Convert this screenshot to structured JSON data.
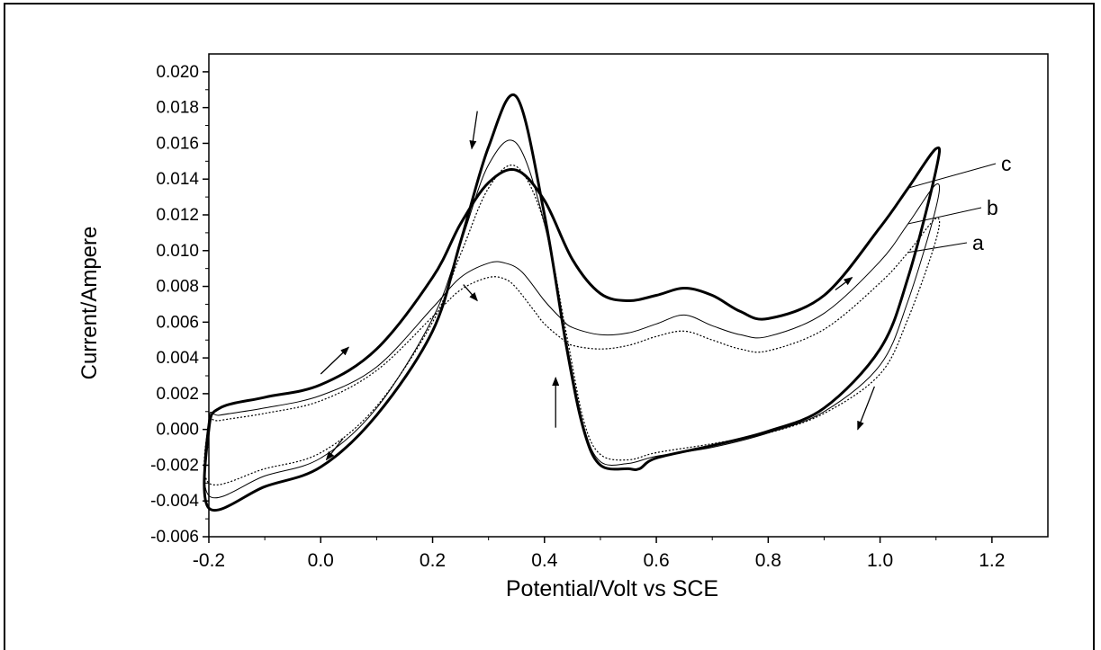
{
  "chart_data": {
    "type": "line",
    "title": "",
    "xlabel": "Potential/Volt vs SCE",
    "ylabel": "Current/Ampere",
    "xlim": [
      -0.2,
      1.3
    ],
    "ylim": [
      -0.006,
      0.021
    ],
    "xticks": [
      "-0.2",
      "0.0",
      "0.2",
      "0.4",
      "0.6",
      "0.8",
      "1.0",
      "1.2"
    ],
    "xtick_values": [
      -0.2,
      0.0,
      0.2,
      0.4,
      0.6,
      0.8,
      1.0,
      1.2
    ],
    "yticks": [
      "-0.006",
      "-0.004",
      "-0.002",
      "0.000",
      "0.002",
      "0.004",
      "0.006",
      "0.008",
      "0.010",
      "0.012",
      "0.014",
      "0.016",
      "0.018",
      "0.020"
    ],
    "ytick_values": [
      -0.006,
      -0.004,
      -0.002,
      0.0,
      0.002,
      0.004,
      0.006,
      0.008,
      0.01,
      0.012,
      0.014,
      0.016,
      0.018,
      0.02
    ],
    "grid": false,
    "series": [
      {
        "name": "a",
        "style": "dotted",
        "x": [
          -0.2,
          -0.18,
          -0.1,
          0.0,
          0.1,
          0.2,
          0.25,
          0.3,
          0.33,
          0.35,
          0.38,
          0.4,
          0.43,
          0.45,
          0.5,
          0.55,
          0.6,
          0.65,
          0.7,
          0.75,
          0.8,
          0.9,
          1.0,
          1.05,
          1.1,
          1.1,
          1.05,
          1.0,
          0.9,
          0.8,
          0.7,
          0.6,
          0.55,
          0.5,
          0.47,
          0.44,
          0.4,
          0.35,
          0.3,
          0.25,
          0.2,
          0.1,
          0.0,
          -0.1,
          -0.2
        ],
        "y": [
          0.0003,
          0.0005,
          0.0009,
          0.0016,
          0.0033,
          0.0063,
          0.0078,
          0.0085,
          0.0084,
          0.0079,
          0.0067,
          0.0059,
          0.0051,
          0.0047,
          0.0045,
          0.0047,
          0.0052,
          0.0055,
          0.005,
          0.0045,
          0.0044,
          0.0056,
          0.0082,
          0.0099,
          0.0118,
          0.0106,
          0.0062,
          0.0031,
          0.0009,
          -0.0002,
          -0.0008,
          -0.0013,
          -0.0017,
          -0.0014,
          0.0005,
          0.0052,
          0.0115,
          0.0147,
          0.0135,
          0.0098,
          0.006,
          0.0013,
          -0.0013,
          -0.0022,
          -0.003
        ]
      },
      {
        "name": "b",
        "style": "thin",
        "x": [
          -0.2,
          -0.18,
          -0.1,
          0.0,
          0.1,
          0.2,
          0.25,
          0.3,
          0.33,
          0.36,
          0.4,
          0.43,
          0.45,
          0.5,
          0.55,
          0.6,
          0.65,
          0.7,
          0.75,
          0.8,
          0.9,
          1.0,
          1.05,
          1.1,
          1.1,
          1.05,
          1.0,
          0.9,
          0.8,
          0.7,
          0.6,
          0.55,
          0.5,
          0.47,
          0.44,
          0.4,
          0.35,
          0.3,
          0.25,
          0.2,
          0.1,
          0.0,
          -0.1,
          -0.2
        ],
        "y": [
          0.0006,
          0.0008,
          0.0012,
          0.0019,
          0.0035,
          0.0068,
          0.0085,
          0.0093,
          0.0093,
          0.0088,
          0.0072,
          0.0062,
          0.0057,
          0.0053,
          0.0054,
          0.0059,
          0.0064,
          0.0058,
          0.0053,
          0.0052,
          0.0065,
          0.0094,
          0.0115,
          0.0137,
          0.0124,
          0.0072,
          0.0036,
          0.001,
          -0.0002,
          -0.001,
          -0.0015,
          -0.0019,
          -0.0018,
          0.0002,
          0.0048,
          0.0115,
          0.016,
          0.0148,
          0.0104,
          0.0062,
          0.0012,
          -0.0016,
          -0.0026,
          -0.0037
        ]
      },
      {
        "name": "c",
        "style": "thick",
        "x": [
          -0.2,
          -0.18,
          -0.1,
          0.0,
          0.1,
          0.2,
          0.25,
          0.3,
          0.35,
          0.4,
          0.45,
          0.5,
          0.55,
          0.6,
          0.65,
          0.7,
          0.75,
          0.8,
          0.9,
          1.0,
          1.05,
          1.1,
          1.1,
          1.05,
          1.0,
          0.9,
          0.8,
          0.7,
          0.6,
          0.57,
          0.55,
          0.5,
          0.47,
          0.44,
          0.4,
          0.35,
          0.3,
          0.25,
          0.2,
          0.1,
          0.0,
          -0.1,
          -0.2
        ],
        "y": [
          0.0,
          0.0012,
          0.0018,
          0.0025,
          0.0045,
          0.0085,
          0.0115,
          0.0138,
          0.0145,
          0.0128,
          0.0095,
          0.0076,
          0.0072,
          0.0075,
          0.0079,
          0.0075,
          0.0066,
          0.0062,
          0.0075,
          0.0113,
          0.0135,
          0.0157,
          0.0145,
          0.0085,
          0.0045,
          0.0012,
          -0.0001,
          -0.0009,
          -0.0016,
          -0.0022,
          -0.0022,
          -0.002,
          0.0,
          0.0045,
          0.012,
          0.0186,
          0.0158,
          0.0105,
          0.0055,
          0.0008,
          -0.0021,
          -0.0032,
          -0.0044
        ]
      }
    ],
    "annotations": [
      {
        "type": "label",
        "text": "a",
        "target": "a"
      },
      {
        "type": "label",
        "text": "b",
        "target": "b"
      },
      {
        "type": "label",
        "text": "c",
        "target": "c"
      },
      {
        "type": "arrow",
        "from": [
          0.28,
          0.0178
        ],
        "to": [
          0.27,
          0.0157
        ]
      },
      {
        "type": "arrow",
        "from": [
          0.255,
          0.0081
        ],
        "to": [
          0.28,
          0.0072
        ]
      },
      {
        "type": "arrow",
        "from": [
          0.92,
          0.0078
        ],
        "to": [
          0.95,
          0.0085
        ]
      },
      {
        "type": "arrow",
        "from": [
          0.0,
          0.0031
        ],
        "to": [
          0.05,
          0.0046
        ]
      },
      {
        "type": "arrow",
        "from": [
          0.04,
          -0.0005
        ],
        "to": [
          0.01,
          -0.0017
        ]
      },
      {
        "type": "arrow",
        "from": [
          0.42,
          0.0001
        ],
        "to": [
          0.42,
          0.0029
        ]
      },
      {
        "type": "arrow",
        "from": [
          0.99,
          0.0024
        ],
        "to": [
          0.96,
          0.0
        ]
      }
    ]
  }
}
